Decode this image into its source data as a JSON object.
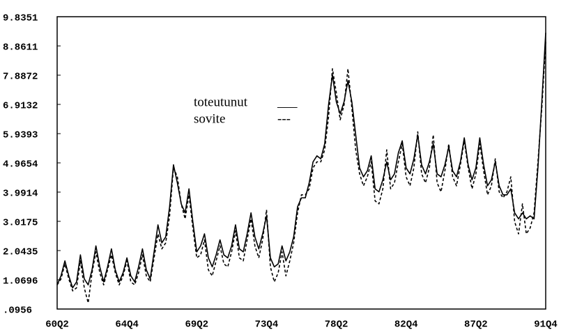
{
  "chart_data": {
    "type": "line",
    "categories": [
      "60Q2",
      null,
      null,
      null,
      null,
      null,
      null,
      null,
      null,
      null,
      null,
      null,
      null,
      null,
      null,
      null,
      null,
      null,
      "64Q4",
      null,
      null,
      null,
      null,
      null,
      null,
      null,
      null,
      null,
      null,
      null,
      null,
      null,
      null,
      null,
      null,
      null,
      "69Q2",
      null,
      null,
      null,
      null,
      null,
      null,
      null,
      null,
      null,
      null,
      null,
      null,
      null,
      null,
      null,
      null,
      null,
      "73Q4",
      null,
      null,
      null,
      null,
      null,
      null,
      null,
      null,
      null,
      null,
      null,
      null,
      null,
      null,
      null,
      null,
      null,
      "78Q2",
      null,
      null,
      null,
      null,
      null,
      null,
      null,
      null,
      null,
      null,
      null,
      null,
      null,
      null,
      null,
      null,
      null,
      "82Q4",
      null,
      null,
      null,
      null,
      null,
      null,
      null,
      null,
      null,
      null,
      null,
      null,
      null,
      null,
      null,
      null,
      null,
      "87Q2",
      null,
      null,
      null,
      null,
      null,
      null,
      null,
      null,
      null,
      null,
      null,
      null,
      null,
      null,
      null,
      null,
      null,
      "91Q4"
    ],
    "series": [
      {
        "name": "toteutunut",
        "color": "#000000",
        "style": "solid",
        "legend_sample": "___",
        "values": [
          0.9,
          1.2,
          1.7,
          1.2,
          0.8,
          1.0,
          1.9,
          1.1,
          0.9,
          1.4,
          2.2,
          1.5,
          1.0,
          1.5,
          2.1,
          1.4,
          1.0,
          1.3,
          1.8,
          1.2,
          1.0,
          1.5,
          2.1,
          1.4,
          1.1,
          2.0,
          2.9,
          2.3,
          2.5,
          3.5,
          4.9,
          4.3,
          3.6,
          3.3,
          4.1,
          3.0,
          2.0,
          2.2,
          2.6,
          1.8,
          1.5,
          1.9,
          2.4,
          1.9,
          1.8,
          2.2,
          2.9,
          2.1,
          2.0,
          2.6,
          3.3,
          2.5,
          2.1,
          2.6,
          3.2,
          1.8,
          1.5,
          1.6,
          2.2,
          1.7,
          2.0,
          2.5,
          3.5,
          3.8,
          3.8,
          4.3,
          5.0,
          5.2,
          5.1,
          5.6,
          6.9,
          7.9,
          7.0,
          6.6,
          7.0,
          7.7,
          7.0,
          5.9,
          4.8,
          4.5,
          4.7,
          5.2,
          4.1,
          4.0,
          4.4,
          5.0,
          4.4,
          4.6,
          5.3,
          5.7,
          4.8,
          4.6,
          5.1,
          5.9,
          4.9,
          4.6,
          5.0,
          5.6,
          4.6,
          4.5,
          4.9,
          5.5,
          4.7,
          4.5,
          5.0,
          5.8,
          4.9,
          4.4,
          4.8,
          5.8,
          4.9,
          4.2,
          4.4,
          5.0,
          4.2,
          3.9,
          3.9,
          4.1,
          3.3,
          3.1,
          3.3,
          3.1,
          3.2,
          3.1,
          4.8,
          7.0,
          9.3
        ]
      },
      {
        "name": "sovite",
        "color": "#000000",
        "style": "dashed",
        "legend_sample": "---",
        "values": [
          0.9,
          1.1,
          1.6,
          1.1,
          0.7,
          0.8,
          1.7,
          0.8,
          0.3,
          1.3,
          2.0,
          1.3,
          0.9,
          1.4,
          1.9,
          1.3,
          0.9,
          1.2,
          1.7,
          1.0,
          0.9,
          1.3,
          1.9,
          1.2,
          1.0,
          1.8,
          2.6,
          2.1,
          2.3,
          3.2,
          4.8,
          4.5,
          3.6,
          3.1,
          3.9,
          2.8,
          1.8,
          1.9,
          2.4,
          1.4,
          1.2,
          1.7,
          2.2,
          1.6,
          1.5,
          2.0,
          2.7,
          1.8,
          1.7,
          2.4,
          3.1,
          2.2,
          1.8,
          2.4,
          3.4,
          1.5,
          1.0,
          1.3,
          2.0,
          1.2,
          1.7,
          2.3,
          3.3,
          3.9,
          3.9,
          4.1,
          4.8,
          5.0,
          5.0,
          5.4,
          6.5,
          8.1,
          7.3,
          6.4,
          6.9,
          8.1,
          6.8,
          5.4,
          4.6,
          4.2,
          4.5,
          5.0,
          3.7,
          3.6,
          4.1,
          5.4,
          4.1,
          4.3,
          5.0,
          5.6,
          4.5,
          4.2,
          4.8,
          6.0,
          4.6,
          4.3,
          4.8,
          5.9,
          4.3,
          4.0,
          4.7,
          5.6,
          4.5,
          4.2,
          4.9,
          5.7,
          4.8,
          4.1,
          4.6,
          5.6,
          4.7,
          3.9,
          4.2,
          5.1,
          4.0,
          3.8,
          4.0,
          4.5,
          3.0,
          2.6,
          3.6,
          2.6,
          2.8,
          3.3,
          5.0,
          6.8,
          9.0
        ]
      }
    ],
    "ylim": [
      0.0956,
      9.8351
    ],
    "yticks": [
      {
        "value": 0.0956,
        "label": ".0956"
      },
      1.0696,
      2.0435,
      3.0175,
      3.9914,
      4.9654,
      5.9393,
      6.9132,
      7.8872,
      8.8611,
      9.8351
    ],
    "grid": false
  }
}
